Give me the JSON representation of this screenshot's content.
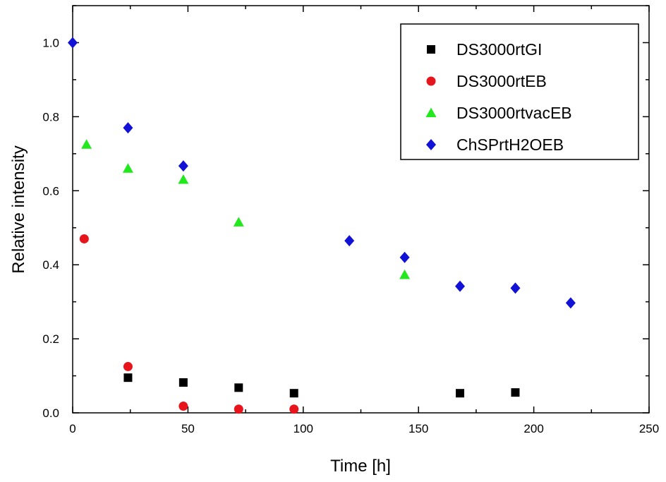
{
  "chart_data": {
    "type": "scatter",
    "xlabel": "Time [h]",
    "ylabel": "Relative intensity",
    "xlim": [
      0,
      250
    ],
    "ylim": [
      0,
      1.1
    ],
    "x_ticks": [
      "0",
      "50",
      "100",
      "150",
      "200",
      "250"
    ],
    "y_ticks": [
      "0.0",
      "0.2",
      "0.4",
      "0.6",
      "0.8",
      "1.0"
    ],
    "legend_position": "top-right",
    "grid": false,
    "series": [
      {
        "name": "DS3000rtGI",
        "marker": "square",
        "color": "#000000",
        "points": [
          [
            24,
            0.095
          ],
          [
            48,
            0.082
          ],
          [
            72,
            0.068
          ],
          [
            96,
            0.053
          ],
          [
            168,
            0.053
          ],
          [
            192,
            0.055
          ]
        ]
      },
      {
        "name": "DS3000rtEB",
        "marker": "circle",
        "color": "#e8141c",
        "points": [
          [
            5,
            0.47
          ],
          [
            24,
            0.125
          ],
          [
            48,
            0.018
          ],
          [
            72,
            0.01
          ],
          [
            96,
            0.01
          ]
        ]
      },
      {
        "name": "DS3000rtvacEB",
        "marker": "triangle",
        "color": "#22e81e",
        "points": [
          [
            6,
            0.725
          ],
          [
            24,
            0.66
          ],
          [
            48,
            0.63
          ],
          [
            72,
            0.515
          ],
          [
            144,
            0.373
          ]
        ]
      },
      {
        "name": "ChSPrtH2OEB",
        "marker": "diamond",
        "color": "#1212d6",
        "points": [
          [
            0,
            1.0
          ],
          [
            24,
            0.77
          ],
          [
            48,
            0.667
          ],
          [
            120,
            0.465
          ],
          [
            144,
            0.42
          ],
          [
            168,
            0.342
          ],
          [
            192,
            0.337
          ],
          [
            216,
            0.297
          ]
        ]
      }
    ]
  }
}
